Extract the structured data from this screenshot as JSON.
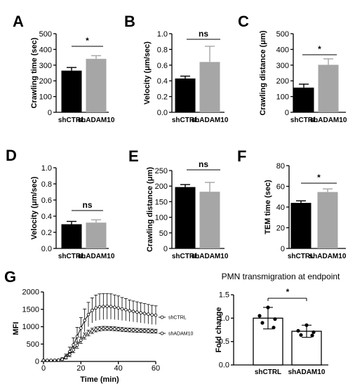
{
  "colors": {
    "shCTRL": "#000000",
    "shADAM10": "#a6a6a6",
    "axis": "#000000"
  },
  "chart_data": [
    {
      "panel": "A",
      "type": "bar",
      "ylabel": "Crawling time (sec)",
      "ylim": [
        0,
        500
      ],
      "yticks": [
        "0",
        "100",
        "200",
        "300",
        "400",
        "500"
      ],
      "categories": [
        "shCTRL",
        "shADAM10"
      ],
      "values": [
        265,
        340
      ],
      "errors": [
        20,
        20
      ],
      "significance": "*"
    },
    {
      "panel": "B",
      "type": "bar",
      "ylabel": "Velocity (μm/sec)",
      "ylim": [
        0,
        1.0
      ],
      "yticks": [
        "0.0",
        "0.2",
        "0.4",
        "0.6",
        "0.8",
        "1.0"
      ],
      "categories": [
        "shCTRL",
        "shADAM10"
      ],
      "values": [
        0.43,
        0.64
      ],
      "errors": [
        0.03,
        0.2
      ],
      "significance": "ns"
    },
    {
      "panel": "C",
      "type": "bar",
      "ylabel": "Crawling distance (μm)",
      "ylim": [
        0,
        500
      ],
      "yticks": [
        "0",
        "100",
        "200",
        "300",
        "400",
        "500"
      ],
      "categories": [
        "shCTRL",
        "shADAM10"
      ],
      "values": [
        157,
        302
      ],
      "errors": [
        22,
        38
      ],
      "significance": "*"
    },
    {
      "panel": "D",
      "type": "bar",
      "ylabel": "Velocity (μm/sec)",
      "ylim": [
        0,
        1.0
      ],
      "yticks": [
        "0.0",
        "0.2",
        "0.4",
        "0.6",
        "0.8",
        "1.0"
      ],
      "categories": [
        "shCTRL",
        "shADAM10"
      ],
      "values": [
        0.3,
        0.32
      ],
      "errors": [
        0.035,
        0.035
      ],
      "significance": "ns"
    },
    {
      "panel": "E",
      "type": "bar",
      "ylabel": "Crawling distance (μm)",
      "ylim": [
        0,
        250
      ],
      "yticks": [
        "0",
        "50",
        "100",
        "150",
        "200",
        "250"
      ],
      "categories": [
        "shCTRL",
        "shADAM10"
      ],
      "values": [
        197,
        182
      ],
      "errors": [
        8,
        30
      ],
      "significance": "ns"
    },
    {
      "panel": "F",
      "type": "bar",
      "ylabel": "TEM time (sec)",
      "ylim": [
        0,
        80
      ],
      "yticks": [
        "0",
        "20",
        "40",
        "60",
        "80"
      ],
      "categories": [
        "shCTRL",
        "shADAM10"
      ],
      "values": [
        44,
        54.5
      ],
      "errors": [
        2,
        3
      ],
      "significance": "*"
    },
    {
      "panel": "G",
      "type": "line",
      "xlabel": "Time (min)",
      "ylabel": "MFI",
      "xlim": [
        0,
        60
      ],
      "ylim": [
        0,
        2000
      ],
      "xticks": [
        "0",
        "20",
        "40",
        "60"
      ],
      "yticks": [
        "0",
        "500",
        "1000",
        "1500",
        "2000"
      ],
      "x": [
        0,
        2,
        4,
        6,
        8,
        10,
        12,
        14,
        16,
        18,
        20,
        22,
        24,
        26,
        28,
        30,
        32,
        34,
        36,
        38,
        40,
        42,
        44,
        46,
        48,
        50,
        52,
        54,
        56,
        58,
        60
      ],
      "series": [
        {
          "name": "shCTRL",
          "values": [
            30,
            30,
            30,
            32,
            40,
            70,
            140,
            280,
            480,
            720,
            960,
            1180,
            1350,
            1470,
            1540,
            1570,
            1580,
            1585,
            1580,
            1560,
            1540,
            1510,
            1490,
            1460,
            1440,
            1420,
            1400,
            1380,
            1360,
            1340,
            1330
          ],
          "errors": [
            10,
            10,
            10,
            12,
            20,
            35,
            70,
            130,
            200,
            260,
            300,
            330,
            350,
            360,
            370,
            375,
            375,
            370,
            365,
            355,
            345,
            330,
            320,
            310,
            300,
            295,
            290,
            285,
            280,
            275,
            270
          ]
        },
        {
          "name": "shADAM10",
          "values": [
            30,
            30,
            30,
            32,
            38,
            60,
            110,
            200,
            330,
            470,
            610,
            730,
            820,
            880,
            920,
            940,
            950,
            950,
            945,
            940,
            930,
            920,
            910,
            905,
            900,
            895,
            890,
            885,
            880,
            875,
            870
          ],
          "errors": [
            8,
            8,
            8,
            10,
            14,
            22,
            40,
            60,
            80,
            90,
            90,
            85,
            80,
            75,
            70,
            65,
            60,
            58,
            55,
            55,
            55,
            55,
            55,
            55,
            55,
            55,
            55,
            55,
            55,
            55,
            55
          ]
        }
      ]
    },
    {
      "panel": "G",
      "type": "bar",
      "title": "PMN transmigration at endpoint",
      "ylabel": "Fold change",
      "ylim": [
        0,
        1.5
      ],
      "yticks": [
        "0.0",
        "0.5",
        "1.0",
        "1.5"
      ],
      "categories": [
        "shCTRL",
        "shADAM10"
      ],
      "values": [
        1.0,
        0.72
      ],
      "errors": [
        0.23,
        0.13
      ],
      "points": [
        [
          1.23,
          1.05,
          0.98,
          0.9,
          0.8
        ],
        [
          0.85,
          0.73,
          0.7,
          0.64,
          0.63
        ]
      ],
      "significance": "*"
    }
  ]
}
